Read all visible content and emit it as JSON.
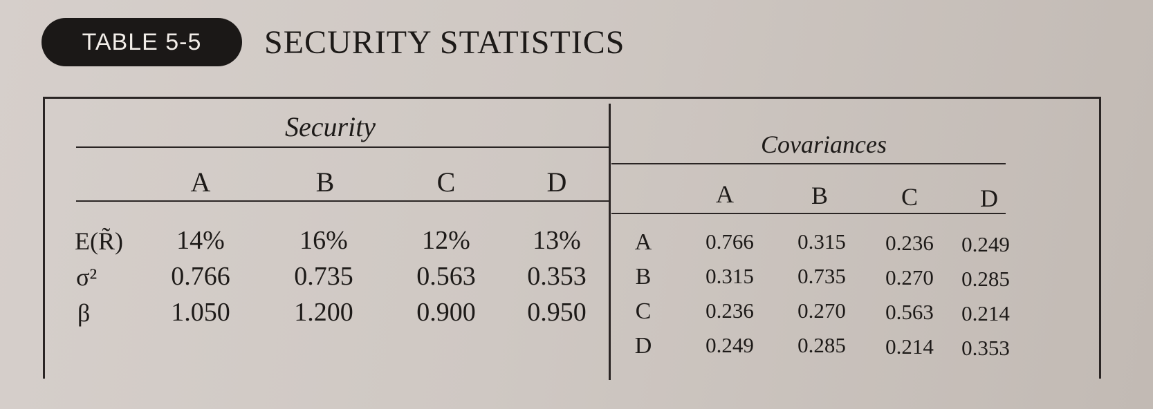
{
  "badge": "TABLE 5-5",
  "title": "SECURITY STATISTICS",
  "security": {
    "group_label": "Security",
    "columns": [
      "A",
      "B",
      "C",
      "D"
    ],
    "rows": [
      {
        "label": "E(R̃)",
        "values": [
          "14%",
          "16%",
          "12%",
          "13%"
        ]
      },
      {
        "label": "σ²",
        "values": [
          "0.766",
          "0.735",
          "0.563",
          "0.353"
        ]
      },
      {
        "label": "β",
        "values": [
          "1.050",
          "1.200",
          "0.900",
          "0.950"
        ]
      }
    ]
  },
  "covariances": {
    "group_label": "Covariances",
    "columns": [
      "A",
      "B",
      "C",
      "D"
    ],
    "rows": [
      {
        "label": "A",
        "values": [
          "0.766",
          "0.315",
          "0.236",
          "0.249"
        ]
      },
      {
        "label": "B",
        "values": [
          "0.315",
          "0.735",
          "0.270",
          "0.285"
        ]
      },
      {
        "label": "C",
        "values": [
          "0.236",
          "0.270",
          "0.563",
          "0.214"
        ]
      },
      {
        "label": "D",
        "values": [
          "0.249",
          "0.285",
          "0.214",
          "0.353"
        ]
      }
    ]
  }
}
